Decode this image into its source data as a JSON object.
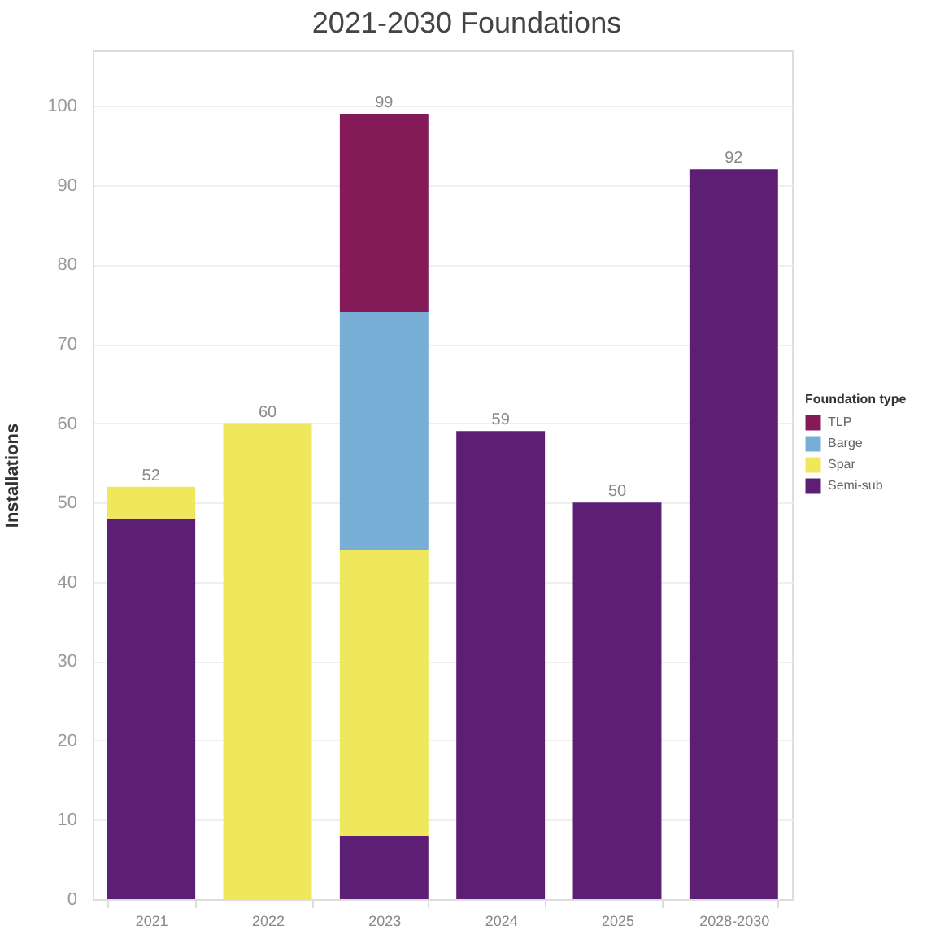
{
  "chart_data": {
    "type": "bar",
    "title": "2021-2030 Foundations",
    "ylabel": "Installations",
    "legend_title": "Foundation type",
    "categories": [
      "2021",
      "2022",
      "2023",
      "2024",
      "2025",
      "2028-2030"
    ],
    "series": [
      {
        "name": "Semi-sub",
        "color": "#5c1f74",
        "values": [
          48,
          null,
          8,
          59,
          50,
          92
        ]
      },
      {
        "name": "Spar",
        "color": "#f0e85c",
        "values": [
          4,
          60,
          36,
          null,
          null,
          null
        ]
      },
      {
        "name": "Barge",
        "color": "#76aed6",
        "values": [
          null,
          null,
          30,
          null,
          null,
          null
        ]
      },
      {
        "name": "TLP",
        "color": "#851a58",
        "values": [
          null,
          null,
          25,
          null,
          null,
          null
        ]
      }
    ],
    "stacked": true,
    "totals": [
      "52",
      "60",
      "99",
      "59",
      "50",
      "92"
    ],
    "ylim": [
      0,
      107
    ],
    "yticks": [
      0,
      10,
      20,
      30,
      40,
      50,
      60,
      70,
      80,
      90,
      100
    ],
    "grid": "y",
    "legend": "right"
  }
}
